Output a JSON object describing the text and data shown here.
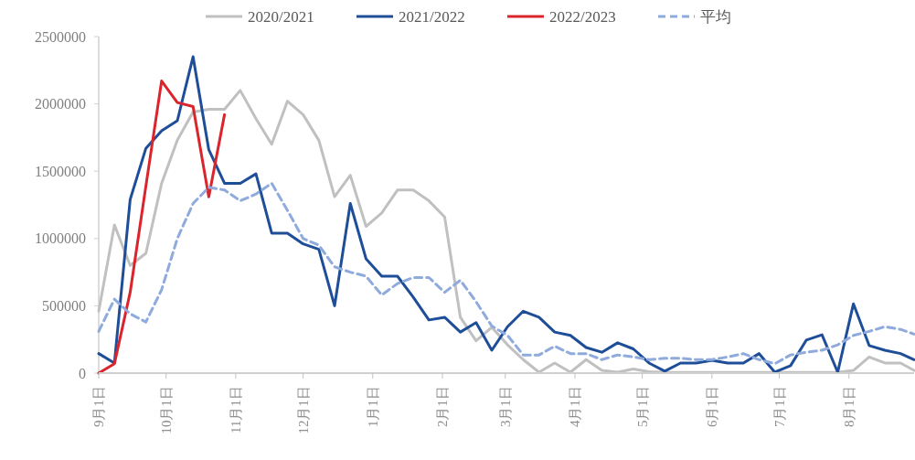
{
  "chart_data": {
    "type": "line",
    "legend": "top",
    "grid": false,
    "marker": "none",
    "x": [
      "2022-09-01",
      "2022-09-08",
      "2022-09-15",
      "2022-09-22",
      "2022-09-29",
      "2022-10-06",
      "2022-10-13",
      "2022-10-20",
      "2022-10-27",
      "2022-11-03",
      "2022-11-10",
      "2022-11-17",
      "2022-11-24",
      "2022-12-01",
      "2022-12-08",
      "2022-12-15",
      "2022-12-22",
      "2022-12-29",
      "2023-01-05",
      "2023-01-12",
      "2023-01-19",
      "2023-01-26",
      "2023-02-02",
      "2023-02-09",
      "2023-02-16",
      "2023-02-23",
      "2023-03-02",
      "2023-03-09",
      "2023-03-16",
      "2023-03-23",
      "2023-03-30",
      "2023-04-06",
      "2023-04-13",
      "2023-04-20",
      "2023-04-27",
      "2023-05-04",
      "2023-05-11",
      "2023-05-18",
      "2023-05-25",
      "2023-06-01",
      "2023-06-08",
      "2023-06-15",
      "2023-06-22",
      "2023-06-29",
      "2023-07-06",
      "2023-07-13",
      "2023-07-20",
      "2023-07-27",
      "2023-08-03",
      "2023-08-10",
      "2023-08-17",
      "2023-08-24",
      "2023-08-30"
    ],
    "xlim": [
      "2022-09-01",
      "2023-08-30"
    ],
    "xticks": [
      {
        "value": "2022-09-01",
        "label": "9月1日"
      },
      {
        "value": "2022-10-01",
        "label": "10月1日"
      },
      {
        "value": "2022-11-01",
        "label": "11月1日"
      },
      {
        "value": "2022-12-01",
        "label": "12月1日"
      },
      {
        "value": "2023-01-01",
        "label": "1月1日"
      },
      {
        "value": "2023-02-01",
        "label": "2月1日"
      },
      {
        "value": "2023-03-01",
        "label": "3月1日"
      },
      {
        "value": "2023-04-01",
        "label": "4月1日"
      },
      {
        "value": "2023-05-01",
        "label": "5月1日"
      },
      {
        "value": "2023-06-01",
        "label": "6月1日"
      },
      {
        "value": "2023-07-01",
        "label": "7月1日"
      },
      {
        "value": "2023-08-01",
        "label": "8月1日"
      }
    ],
    "ylim": [
      0,
      2500000
    ],
    "yticks": [
      0,
      500000,
      1000000,
      1500000,
      2000000,
      2500000
    ],
    "series": [
      {
        "name": "2020/2021",
        "color": "#c0c0c0",
        "line_style": "solid",
        "values": [
          460000,
          1100000,
          800000,
          890000,
          1410000,
          1730000,
          1940000,
          1960000,
          1960000,
          2100000,
          1890000,
          1700000,
          2020000,
          1920000,
          1730000,
          1310000,
          1470000,
          1090000,
          1190000,
          1360000,
          1360000,
          1280000,
          1160000,
          415000,
          240000,
          340000,
          210000,
          100000,
          7000,
          75000,
          7000,
          100000,
          20000,
          7000,
          30000,
          10000,
          5000,
          5000,
          5000,
          5000,
          5000,
          5000,
          5000,
          5000,
          5000,
          5000,
          5000,
          5000,
          20000,
          120000,
          75000,
          75000,
          20000
        ]
      },
      {
        "name": "2021/2022",
        "color": "#1f4e99",
        "line_style": "solid",
        "values": [
          145000,
          75000,
          1290000,
          1670000,
          1800000,
          1875000,
          2350000,
          1660000,
          1410000,
          1410000,
          1480000,
          1040000,
          1040000,
          960000,
          920000,
          500000,
          1260000,
          850000,
          720000,
          720000,
          565000,
          395000,
          415000,
          305000,
          375000,
          170000,
          345000,
          460000,
          415000,
          305000,
          280000,
          190000,
          155000,
          225000,
          180000,
          75000,
          14000,
          75000,
          75000,
          95000,
          75000,
          75000,
          145000,
          7000,
          55000,
          245000,
          285000,
          7000,
          515000,
          205000,
          170000,
          145000,
          100000
        ]
      },
      {
        "name": "2022/2023",
        "color": "#d9252b",
        "line_style": "solid",
        "values": [
          0,
          70000,
          600000,
          1390000,
          2170000,
          2010000,
          1980000,
          1310000,
          1920000,
          null,
          null,
          null,
          null,
          null,
          null,
          null,
          null,
          null,
          null,
          null,
          null,
          null,
          null,
          null,
          null,
          null,
          null,
          null,
          null,
          null,
          null,
          null,
          null,
          null,
          null,
          null,
          null,
          null,
          null,
          null,
          null,
          null,
          null,
          null,
          null,
          null,
          null,
          null,
          null,
          null,
          null,
          null,
          null
        ]
      },
      {
        "name": "平均",
        "color": "#8faadc",
        "line_style": "dashed",
        "values": [
          310000,
          550000,
          440000,
          380000,
          620000,
          1000000,
          1260000,
          1380000,
          1360000,
          1280000,
          1330000,
          1410000,
          1210000,
          1000000,
          950000,
          790000,
          750000,
          720000,
          580000,
          665000,
          710000,
          710000,
          600000,
          690000,
          530000,
          350000,
          280000,
          135000,
          135000,
          200000,
          145000,
          145000,
          100000,
          135000,
          120000,
          100000,
          110000,
          110000,
          100000,
          100000,
          120000,
          145000,
          100000,
          70000,
          135000,
          155000,
          170000,
          210000,
          280000,
          310000,
          345000,
          325000,
          290000
        ]
      }
    ]
  }
}
